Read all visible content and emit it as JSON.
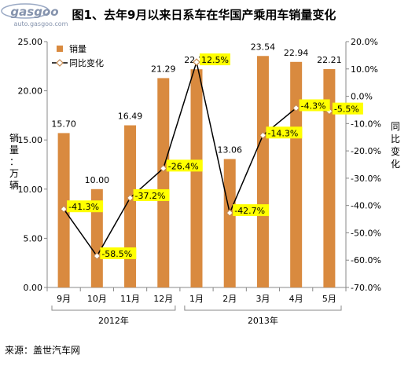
{
  "title": "图1、去年9月以来日系车在华国产乘用车销量变化",
  "source": "来源：盖世汽车网",
  "watermark": "gasgoo auto.gasgoo.com",
  "colors": {
    "bar": "#d98a3f",
    "line": "#000000",
    "marker_fill": "#ffffff",
    "marker_stroke": "#c68a50",
    "label_bg": "#ffff00"
  },
  "chart_data": {
    "type": "bar",
    "categories": [
      "9月",
      "10月",
      "11月",
      "12月",
      "1月",
      "2月",
      "3月",
      "4月",
      "5月"
    ],
    "year_groups": [
      {
        "label": "2012年",
        "start": 0,
        "end": 3
      },
      {
        "label": "2013年",
        "start": 4,
        "end": 8
      }
    ],
    "series": [
      {
        "name": "销量",
        "type": "bar",
        "axis": "left",
        "values": [
          15.7,
          10.0,
          16.49,
          21.29,
          22.19,
          13.06,
          23.54,
          22.94,
          22.21
        ],
        "labels": [
          "15.70",
          "10.00",
          "16.49",
          "21.29",
          "22.19",
          "13.06",
          "23.54",
          "22.94",
          "22.21"
        ]
      },
      {
        "name": "同比变化",
        "type": "line",
        "axis": "right",
        "values": [
          -41.3,
          -58.5,
          -37.2,
          -26.4,
          12.5,
          -42.7,
          -14.3,
          -4.3,
          -5.5
        ],
        "labels": [
          "-41.3%",
          "-58.5%",
          "-37.2%",
          "-26.4%",
          "12.5%",
          "-42.7%",
          "-14.3%",
          "-4.3%",
          "-5.5%"
        ]
      }
    ],
    "y_left": {
      "label": "销量：万辆",
      "range": [
        0,
        25
      ],
      "ticks": [
        "0.00",
        "5.00",
        "10.00",
        "15.00",
        "20.00",
        "25.00"
      ]
    },
    "y_right": {
      "label": "同比变化",
      "range": [
        -70,
        20
      ],
      "ticks": [
        "-70.0%",
        "-60.0%",
        "-50.0%",
        "-40.0%",
        "-30.0%",
        "-20.0%",
        "-10.0%",
        "0.0%",
        "10.0%",
        "20.0%"
      ]
    },
    "legend_position": "top-left",
    "grid": false
  }
}
